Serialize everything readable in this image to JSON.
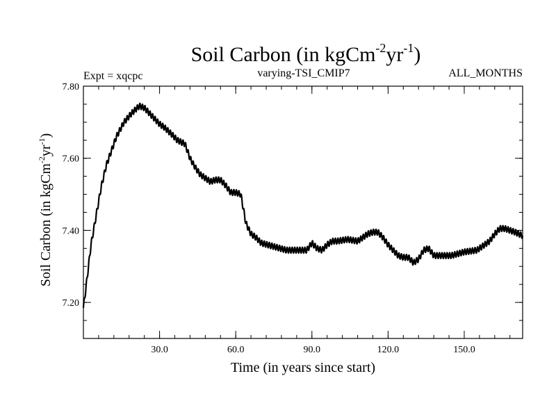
{
  "chart_data": {
    "type": "line",
    "title": {
      "main": "Soil Carbon (in kgCm",
      "sup1": "-2",
      "mid": "yr",
      "sup2": "-1",
      "end": ")"
    },
    "subtitle_left": "Expt = xqcpc",
    "subtitle_center": "varying-TSI_CMIP7",
    "subtitle_right": "ALL_MONTHS",
    "xlabel": "Time (in years since start)",
    "ylabel": {
      "main": "Soil Carbon (in kgCm",
      "sup1": "-2",
      "mid": "yr",
      "sup2": "-1",
      "end": ")"
    },
    "xlim": [
      0,
      173
    ],
    "ylim": [
      7.1,
      7.8
    ],
    "x_ticks": [
      {
        "value": 30,
        "label": "30.0"
      },
      {
        "value": 60,
        "label": "60.0"
      },
      {
        "value": 90,
        "label": "90.0"
      },
      {
        "value": 120,
        "label": "120.0"
      },
      {
        "value": 150,
        "label": "150.0"
      }
    ],
    "y_ticks": [
      {
        "value": 7.2,
        "label": "7.20"
      },
      {
        "value": 7.4,
        "label": "7.40"
      },
      {
        "value": 7.6,
        "label": "7.60"
      },
      {
        "value": 7.8,
        "label": "7.80"
      }
    ],
    "x_minor_step": 6,
    "y_minor_step": 0.05,
    "grid": false,
    "line_color": "#000000",
    "series": [
      {
        "seasonal_amplitude": 0.008,
        "trend": {
          "x": [
            0,
            1,
            2,
            3,
            5,
            7,
            9,
            11,
            13,
            16,
            19,
            22,
            24,
            26,
            28,
            30,
            32,
            35,
            37,
            40,
            42,
            44,
            46,
            48,
            50,
            52,
            54,
            56,
            58,
            60,
            62,
            63,
            64,
            66,
            68,
            70,
            75,
            80,
            85,
            88,
            90,
            92,
            94,
            96,
            98,
            100,
            104,
            108,
            110,
            112,
            114,
            116,
            118,
            120,
            122,
            124,
            126,
            128,
            130,
            132,
            134,
            136,
            138,
            140,
            145,
            150,
            155,
            158,
            160,
            162,
            164,
            166,
            168,
            170,
            173
          ],
          "y": [
            7.185,
            7.24,
            7.3,
            7.36,
            7.44,
            7.52,
            7.58,
            7.62,
            7.66,
            7.7,
            7.725,
            7.745,
            7.74,
            7.725,
            7.71,
            7.695,
            7.685,
            7.665,
            7.65,
            7.64,
            7.6,
            7.575,
            7.555,
            7.545,
            7.535,
            7.54,
            7.54,
            7.525,
            7.505,
            7.505,
            7.5,
            7.46,
            7.42,
            7.39,
            7.38,
            7.365,
            7.355,
            7.345,
            7.345,
            7.345,
            7.365,
            7.35,
            7.345,
            7.36,
            7.37,
            7.37,
            7.375,
            7.37,
            7.38,
            7.39,
            7.395,
            7.395,
            7.38,
            7.36,
            7.345,
            7.33,
            7.325,
            7.325,
            7.31,
            7.32,
            7.345,
            7.35,
            7.33,
            7.33,
            7.33,
            7.34,
            7.345,
            7.36,
            7.37,
            7.39,
            7.405,
            7.405,
            7.4,
            7.395,
            7.385
          ]
        }
      }
    ]
  }
}
